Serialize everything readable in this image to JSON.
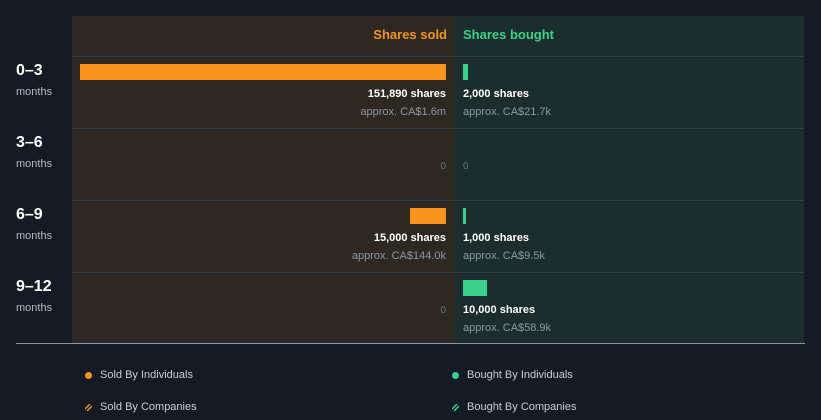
{
  "chart_data": {
    "type": "bar",
    "orientation": "diverging-horizontal",
    "categories": [
      {
        "label": "0–3",
        "unit": "months"
      },
      {
        "label": "3–6",
        "unit": "months"
      },
      {
        "label": "6–9",
        "unit": "months"
      },
      {
        "label": "9–12",
        "unit": "months"
      }
    ],
    "series": [
      {
        "name": "Shares sold",
        "color": "#f7931e",
        "values": [
          151890,
          0,
          15000,
          0
        ],
        "shares_text": [
          "151,890 shares",
          "",
          "15,000 shares",
          ""
        ],
        "approx_text": [
          "approx. CA$1.6m",
          "",
          "approx. CA$144.0k",
          ""
        ]
      },
      {
        "name": "Shares bought",
        "color": "#3ad28a",
        "values": [
          2000,
          0,
          1000,
          10000
        ],
        "shares_text": [
          "2,000 shares",
          "",
          "1,000 shares",
          "10,000 shares"
        ],
        "approx_text": [
          "approx. CA$21.7k",
          "",
          "approx. CA$9.5k",
          "approx. CA$58.9k"
        ]
      }
    ],
    "zero_label": "0",
    "legend": [
      {
        "label": "Sold By Individuals",
        "color": "#f7931e",
        "style": "dot"
      },
      {
        "label": "Bought By Individuals",
        "color": "#3ad28a",
        "style": "dot"
      },
      {
        "label": "Sold By Companies",
        "color": "#f7931e",
        "style": "hatch"
      },
      {
        "label": "Bought By Companies",
        "color": "#3ad28a",
        "style": "hatch"
      }
    ]
  }
}
